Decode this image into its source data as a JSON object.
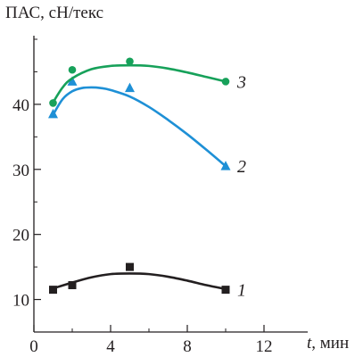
{
  "chart_data": {
    "type": "line",
    "ylabel": "ПАС, сН/текс",
    "xlabel_var": "t",
    "xlabel_unit": ", мин",
    "xlim": [
      0,
      12
    ],
    "ylim": [
      5,
      50
    ],
    "x_ticks": [
      "0",
      "4",
      "8",
      "12"
    ],
    "x_tick_values": [
      0,
      4,
      8,
      12
    ],
    "y_ticks": [
      "10",
      "20",
      "30",
      "40"
    ],
    "y_tick_values": [
      10,
      20,
      30,
      40
    ],
    "grid": false,
    "series": [
      {
        "name": "1",
        "color": "#231f20",
        "marker": "square",
        "points": [
          [
            1,
            11.5
          ],
          [
            2,
            12.2
          ],
          [
            5,
            15.0
          ],
          [
            10,
            11.5
          ]
        ],
        "fit": [
          [
            1,
            11.7
          ],
          [
            2,
            12.6
          ],
          [
            3,
            13.4
          ],
          [
            4,
            13.9
          ],
          [
            5,
            14.0
          ],
          [
            6,
            13.9
          ],
          [
            7,
            13.5
          ],
          [
            8,
            12.9
          ],
          [
            9,
            12.2
          ],
          [
            10,
            11.6
          ]
        ]
      },
      {
        "name": "2",
        "color": "#1e90d6",
        "marker": "triangle",
        "points": [
          [
            1,
            38.5
          ],
          [
            2,
            43.5
          ],
          [
            5,
            42.5
          ],
          [
            10,
            30.5
          ]
        ],
        "fit": [
          [
            1,
            38.4
          ],
          [
            1.5,
            40.8
          ],
          [
            2,
            42.0
          ],
          [
            2.5,
            42.5
          ],
          [
            3,
            42.6
          ],
          [
            3.5,
            42.5
          ],
          [
            4,
            42.2
          ],
          [
            5,
            41.2
          ],
          [
            6,
            39.6
          ],
          [
            7,
            37.6
          ],
          [
            8,
            35.4
          ],
          [
            9,
            33.0
          ],
          [
            10,
            30.5
          ]
        ]
      },
      {
        "name": "3",
        "color": "#17a15a",
        "marker": "circle",
        "points": [
          [
            1,
            40.2
          ],
          [
            2,
            45.3
          ],
          [
            5,
            46.6
          ],
          [
            10,
            43.5
          ]
        ],
        "fit": [
          [
            1,
            40.3
          ],
          [
            1.5,
            42.6
          ],
          [
            2,
            44.0
          ],
          [
            3,
            45.4
          ],
          [
            4,
            45.9
          ],
          [
            5,
            46.0
          ],
          [
            6,
            45.9
          ],
          [
            7,
            45.5
          ],
          [
            8,
            44.9
          ],
          [
            9,
            44.2
          ],
          [
            10,
            43.5
          ]
        ]
      }
    ]
  }
}
